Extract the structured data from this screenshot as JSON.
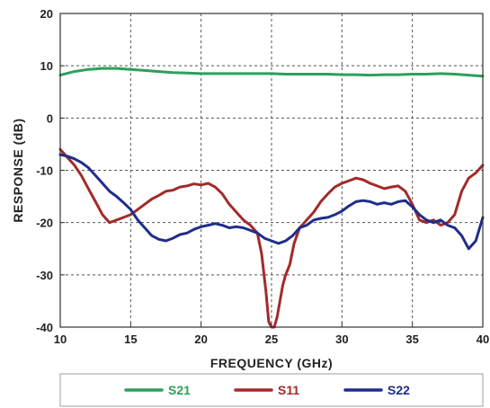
{
  "chart_data": {
    "type": "line",
    "title": "",
    "xlabel": "FREQUENCY (GHz)",
    "ylabel": "RESPONSE (dB)",
    "xlim": [
      10,
      40
    ],
    "ylim": [
      -40,
      20
    ],
    "xticks": [
      10,
      15,
      20,
      25,
      30,
      35,
      40
    ],
    "yticks": [
      -40,
      -30,
      -20,
      -10,
      0,
      10,
      20
    ],
    "grid": true,
    "legend_position": "bottom",
    "series": [
      {
        "name": "S21",
        "color": "#2ca05a",
        "x": [
          10,
          11,
          12,
          13,
          14,
          15,
          16,
          17,
          18,
          19,
          20,
          21,
          22,
          23,
          24,
          25,
          26,
          27,
          28,
          29,
          30,
          31,
          32,
          33,
          34,
          35,
          36,
          37,
          38,
          39,
          40
        ],
        "y": [
          8.2,
          8.9,
          9.3,
          9.5,
          9.5,
          9.3,
          9.1,
          8.9,
          8.7,
          8.6,
          8.5,
          8.5,
          8.5,
          8.5,
          8.5,
          8.5,
          8.4,
          8.4,
          8.4,
          8.4,
          8.3,
          8.3,
          8.2,
          8.3,
          8.3,
          8.4,
          8.4,
          8.5,
          8.4,
          8.2,
          8.0
        ]
      },
      {
        "name": "S11",
        "color": "#a32a2a",
        "x": [
          10,
          10.5,
          11,
          11.5,
          12,
          12.5,
          13,
          13.5,
          14,
          14.5,
          15,
          15.5,
          16,
          16.5,
          17,
          17.5,
          18,
          18.5,
          19,
          19.5,
          20,
          20.5,
          21,
          21.5,
          22,
          22.5,
          23,
          23.5,
          24,
          24.3,
          24.6,
          24.8,
          25,
          25.2,
          25.4,
          25.6,
          25.8,
          26,
          26.3,
          26.6,
          27,
          27.5,
          28,
          28.5,
          29,
          29.5,
          30,
          30.5,
          31,
          31.5,
          32,
          32.5,
          33,
          33.5,
          34,
          34.5,
          35,
          35.5,
          36,
          36.5,
          37,
          37.5,
          38,
          38.5,
          39,
          39.5,
          40
        ],
        "y": [
          -6,
          -7.5,
          -9,
          -11,
          -13.5,
          -16,
          -18.5,
          -20,
          -19.5,
          -19,
          -18.5,
          -17.5,
          -16.5,
          -15.5,
          -14.8,
          -14,
          -13.8,
          -13.2,
          -13,
          -12.6,
          -12.8,
          -12.5,
          -13.2,
          -14.5,
          -16.5,
          -18,
          -19.5,
          -20.5,
          -22,
          -26,
          -33,
          -39,
          -40,
          -40,
          -38,
          -35,
          -32,
          -30,
          -28,
          -24,
          -21,
          -19.5,
          -18,
          -16,
          -14.5,
          -13.2,
          -12.5,
          -12,
          -11.5,
          -11.8,
          -12.5,
          -13,
          -13.5,
          -13.2,
          -13,
          -14,
          -16.5,
          -19.5,
          -20,
          -19.5,
          -20.5,
          -20,
          -18.5,
          -14,
          -11.5,
          -10.5,
          -9
        ]
      },
      {
        "name": "S22",
        "color": "#1f2d8a",
        "x": [
          10,
          10.5,
          11,
          11.5,
          12,
          12.5,
          13,
          13.5,
          14,
          14.5,
          15,
          15.5,
          16,
          16.5,
          17,
          17.5,
          18,
          18.5,
          19,
          19.5,
          20,
          20.5,
          21,
          21.5,
          22,
          22.5,
          23,
          23.5,
          24,
          24.5,
          25,
          25.5,
          26,
          26.5,
          27,
          27.5,
          28,
          28.5,
          29,
          29.5,
          30,
          30.5,
          31,
          31.5,
          32,
          32.5,
          33,
          33.5,
          34,
          34.5,
          35,
          35.5,
          36,
          36.5,
          37,
          37.5,
          38,
          38.5,
          39,
          39.5,
          40
        ],
        "y": [
          -7,
          -7.3,
          -7.8,
          -8.5,
          -9.5,
          -11,
          -12.5,
          -14,
          -15,
          -16.2,
          -17.5,
          -19.5,
          -21,
          -22.5,
          -23.2,
          -23.5,
          -23,
          -22.3,
          -22,
          -21.3,
          -20.8,
          -20.5,
          -20.2,
          -20.5,
          -21,
          -20.8,
          -21,
          -21.5,
          -22,
          -23,
          -23.5,
          -24,
          -23.5,
          -22.5,
          -21,
          -20.5,
          -19.5,
          -19.2,
          -19,
          -18.5,
          -17.8,
          -16.8,
          -16,
          -15.8,
          -16,
          -16.5,
          -16.2,
          -16.5,
          -16,
          -15.8,
          -17,
          -18.5,
          -19.5,
          -20,
          -19.5,
          -20.5,
          -21,
          -22.5,
          -25,
          -23.5,
          -19
        ]
      }
    ]
  }
}
